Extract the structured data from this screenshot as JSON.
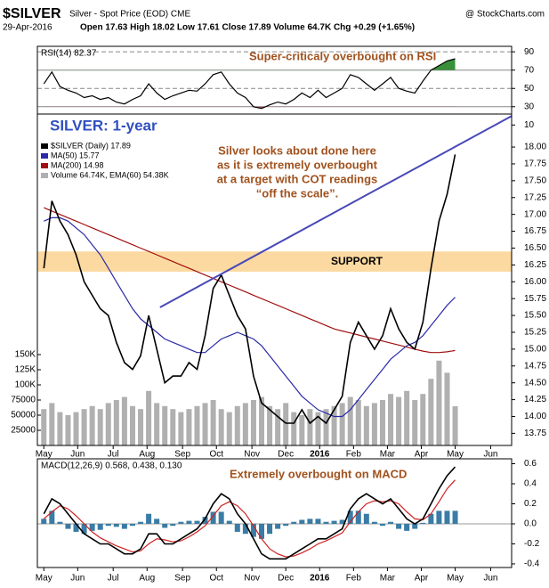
{
  "header": {
    "title": "$SILVER",
    "subtitle": "Silver - Spot Price (EOD) CME",
    "source": "@ StockCharts.com",
    "date": "29-Apr-2016",
    "quote": "Open 17.63 High 18.02 Low 17.61 Close 17.89 Volume 64.7K Chg +0.29 (+1.65%)"
  },
  "chart_data": [
    {
      "type": "line",
      "label": "RSI(14) 82.37",
      "annotation": "Super-criticaly overbought on RSI",
      "x": [
        0,
        5,
        10,
        15,
        20,
        25,
        30,
        35,
        40,
        45,
        50,
        55,
        60,
        65,
        70,
        75,
        80,
        85,
        90,
        95,
        100,
        105,
        110,
        115,
        120,
        125,
        130,
        135,
        140,
        145,
        150,
        155,
        160,
        165,
        170,
        175,
        180,
        185,
        190,
        195,
        200,
        205,
        210,
        215,
        220,
        225,
        230,
        235,
        240,
        245,
        250,
        255
      ],
      "xlim": [
        -4,
        290
      ],
      "ylim": [
        22,
        96
      ],
      "yticks": [
        90,
        70,
        50,
        30,
        10
      ],
      "overbought": 70,
      "oversold": 30,
      "overbought_color": "#3a8f3a",
      "oversold_color": "#b04040",
      "series": [
        {
          "color": "#000000",
          "values": [
            55,
            68,
            52,
            48,
            45,
            40,
            42,
            38,
            40,
            35,
            33,
            38,
            42,
            55,
            45,
            38,
            42,
            45,
            48,
            47,
            55,
            65,
            68,
            55,
            45,
            40,
            30,
            28,
            32,
            35,
            33,
            38,
            45,
            40,
            48,
            40,
            45,
            50,
            65,
            62,
            55,
            48,
            55,
            62,
            50,
            47,
            45,
            58,
            70,
            75,
            80,
            82.37
          ]
        }
      ]
    },
    {
      "type": "line",
      "title": "SILVER: 1-year",
      "annotations": [
        "Silver looks about done here",
        "as it is extremely overbought",
        "at a target with COT readings",
        "“off the scale”."
      ],
      "support_label": "SUPPORT",
      "support": [
        16.15,
        16.45
      ],
      "support_color": "#fbd9a0",
      "trendline": {
        "x": [
          72,
          290
        ],
        "y": [
          15.62,
          18.46
        ],
        "color": "#4848b8"
      },
      "x": [
        0,
        5,
        10,
        15,
        20,
        25,
        30,
        35,
        40,
        45,
        50,
        55,
        60,
        65,
        70,
        75,
        80,
        85,
        90,
        95,
        100,
        105,
        110,
        115,
        120,
        125,
        130,
        135,
        140,
        145,
        150,
        155,
        160,
        165,
        170,
        175,
        180,
        185,
        190,
        195,
        200,
        205,
        210,
        215,
        220,
        225,
        230,
        235,
        240,
        245,
        250,
        255
      ],
      "xlim": [
        -4,
        290
      ],
      "xticks": [
        {
          "value": 0,
          "label": "May"
        },
        {
          "value": 21,
          "label": "Jun"
        },
        {
          "value": 43,
          "label": "Jul"
        },
        {
          "value": 64,
          "label": "Aug"
        },
        {
          "value": 86,
          "label": "Sep"
        },
        {
          "value": 107,
          "label": "Oct"
        },
        {
          "value": 129,
          "label": "Nov"
        },
        {
          "value": 150,
          "label": "Dec"
        },
        {
          "value": 171,
          "label": "2016"
        },
        {
          "value": 192,
          "label": "Feb"
        },
        {
          "value": 213,
          "label": "Mar"
        },
        {
          "value": 234,
          "label": "Apr"
        },
        {
          "value": 255,
          "label": "May"
        },
        {
          "value": 277,
          "label": "Jun"
        }
      ],
      "ylim": [
        13.57,
        18.49
      ],
      "yticks": [
        {
          "value": 18,
          "label": "18.00"
        },
        {
          "value": 17.75,
          "label": "17.75"
        },
        {
          "value": 17.5,
          "label": "17.50"
        },
        {
          "value": 17.25,
          "label": "17.25"
        },
        {
          "value": 17,
          "label": "17.00"
        },
        {
          "value": 16.75,
          "label": "16.75"
        },
        {
          "value": 16.5,
          "label": "16.50"
        },
        {
          "value": 16.25,
          "label": "16.25"
        },
        {
          "value": 16,
          "label": "16.00"
        },
        {
          "value": 15.75,
          "label": "15.75"
        },
        {
          "value": 15.5,
          "label": "15.50"
        },
        {
          "value": 15.25,
          "label": "15.25"
        },
        {
          "value": 15,
          "label": "15.00"
        },
        {
          "value": 14.75,
          "label": "14.75"
        },
        {
          "value": 14.5,
          "label": "14.50"
        },
        {
          "value": 14.25,
          "label": "14.25"
        },
        {
          "value": 14,
          "label": "14.00"
        },
        {
          "value": 13.75,
          "label": "13.75"
        }
      ],
      "y2lim": [
        0,
        547000
      ],
      "y2ticks": [
        {
          "value": 150000,
          "label": "150K"
        },
        {
          "value": 125000,
          "label": "125K"
        },
        {
          "value": 100000,
          "label": "100K"
        },
        75000,
        50000,
        25000
      ],
      "series": [
        {
          "name": "Volume 64.74K, EMA(60) 54.38K",
          "type": "bar",
          "axis": "y2",
          "color": "#b0b0b0",
          "values": [
            60000,
            70000,
            55000,
            50000,
            55000,
            60000,
            65000,
            60000,
            70000,
            75000,
            80000,
            65000,
            60000,
            90000,
            70000,
            65000,
            60000,
            55000,
            60000,
            65000,
            70000,
            75000,
            60000,
            55000,
            65000,
            70000,
            75000,
            80000,
            65000,
            60000,
            70000,
            55000,
            50000,
            60000,
            55000,
            60000,
            65000,
            70000,
            80000,
            75000,
            65000,
            70000,
            75000,
            85000,
            80000,
            90000,
            75000,
            85000,
            110000,
            140000,
            120000,
            64740
          ]
        },
        {
          "name": "MA(200) 14.98",
          "color": "#a01010",
          "values": [
            17.1,
            17.05,
            17.0,
            16.95,
            16.9,
            16.85,
            16.8,
            16.75,
            16.7,
            16.65,
            16.6,
            16.55,
            16.5,
            16.45,
            16.4,
            16.35,
            16.3,
            16.25,
            16.2,
            16.15,
            16.1,
            16.05,
            16.0,
            15.95,
            15.9,
            15.85,
            15.8,
            15.75,
            15.7,
            15.65,
            15.6,
            15.55,
            15.5,
            15.45,
            15.4,
            15.35,
            15.3,
            15.27,
            15.24,
            15.21,
            15.18,
            15.15,
            15.12,
            15.09,
            15.06,
            15.03,
            15.0,
            14.97,
            14.95,
            14.95,
            14.96,
            14.98
          ]
        },
        {
          "name": "MA(50) 15.77",
          "color": "#2a2aa8",
          "values": [
            16.9,
            16.95,
            16.95,
            16.9,
            16.8,
            16.7,
            16.55,
            16.4,
            16.2,
            16.0,
            15.8,
            15.6,
            15.45,
            15.35,
            15.25,
            15.15,
            15.1,
            15.05,
            15.0,
            14.95,
            14.95,
            15.05,
            15.15,
            15.2,
            15.25,
            15.2,
            15.15,
            15.05,
            14.9,
            14.75,
            14.6,
            14.45,
            14.3,
            14.2,
            14.1,
            14.05,
            14.0,
            14.0,
            14.1,
            14.25,
            14.4,
            14.55,
            14.7,
            14.85,
            14.95,
            15.05,
            15.1,
            15.2,
            15.35,
            15.5,
            15.65,
            15.77
          ]
        },
        {
          "name": "$SILVER (Daily) 17.89",
          "color": "#000000",
          "values": [
            16.2,
            17.2,
            16.9,
            16.7,
            16.4,
            16.0,
            15.8,
            15.6,
            15.5,
            15.1,
            14.8,
            14.7,
            14.9,
            15.5,
            15.0,
            14.5,
            14.6,
            14.6,
            14.8,
            14.7,
            15.2,
            15.9,
            16.1,
            15.8,
            15.5,
            15.3,
            14.6,
            14.2,
            14.1,
            14.0,
            13.9,
            13.9,
            14.1,
            13.9,
            14.0,
            13.9,
            14.1,
            14.3,
            15.1,
            15.4,
            15.2,
            15.0,
            15.2,
            15.6,
            15.3,
            15.1,
            15.0,
            15.4,
            16.2,
            16.9,
            17.3,
            17.89
          ]
        }
      ]
    },
    {
      "type": "line",
      "label": "MACD(12,26,9) 0.568, 0.438, 0.130",
      "annotation": "Extremely overbought on MACD",
      "x": [
        0,
        5,
        10,
        15,
        20,
        25,
        30,
        35,
        40,
        45,
        50,
        55,
        60,
        65,
        70,
        75,
        80,
        85,
        90,
        95,
        100,
        105,
        110,
        115,
        120,
        125,
        130,
        135,
        140,
        145,
        150,
        155,
        160,
        165,
        170,
        175,
        180,
        185,
        190,
        195,
        200,
        205,
        210,
        215,
        220,
        225,
        230,
        235,
        240,
        245,
        250,
        255
      ],
      "xlim": [
        -4,
        290
      ],
      "xticks": [
        {
          "value": 0,
          "label": "May"
        },
        {
          "value": 21,
          "label": "Jun"
        },
        {
          "value": 43,
          "label": "Jul"
        },
        {
          "value": 64,
          "label": "Aug"
        },
        {
          "value": 86,
          "label": "Sep"
        },
        {
          "value": 107,
          "label": "Oct"
        },
        {
          "value": 129,
          "label": "Nov"
        },
        {
          "value": 150,
          "label": "Dec"
        },
        {
          "value": 171,
          "label": "2016"
        },
        {
          "value": 192,
          "label": "Feb"
        },
        {
          "value": 213,
          "label": "Mar"
        },
        {
          "value": 234,
          "label": "Apr"
        },
        {
          "value": 255,
          "label": "May"
        },
        {
          "value": 277,
          "label": "Jun"
        }
      ],
      "ylim": [
        -0.436,
        0.649
      ],
      "yticks": [
        0.6,
        0.4,
        0.2,
        {
          "value": 0,
          "label": "0.0"
        },
        -0.2,
        -0.4
      ],
      "series": [
        {
          "type": "bar",
          "color": "#3a7ca5",
          "values": [
            0.05,
            0.13,
            0.02,
            -0.05,
            -0.08,
            -0.1,
            -0.07,
            -0.06,
            -0.02,
            -0.03,
            -0.05,
            -0.02,
            0.02,
            0.1,
            0.05,
            -0.04,
            -0.02,
            0.02,
            0.03,
            0.03,
            0.07,
            0.12,
            0.12,
            0.03,
            -0.08,
            -0.1,
            -0.13,
            -0.15,
            -0.1,
            -0.05,
            -0.02,
            0.02,
            0.04,
            0.05,
            0.05,
            0.02,
            0.03,
            0.04,
            0.13,
            0.13,
            0.1,
            0.02,
            -0.02,
            0.02,
            -0.05,
            -0.07,
            -0.05,
            0.01,
            0.1,
            0.13,
            0.13,
            0.13
          ]
        },
        {
          "color": "#d02020",
          "values": [
            0.05,
            0.12,
            0.18,
            0.15,
            0.08,
            0.0,
            -0.08,
            -0.14,
            -0.18,
            -0.22,
            -0.25,
            -0.28,
            -0.27,
            -0.2,
            -0.15,
            -0.16,
            -0.18,
            -0.17,
            -0.13,
            -0.08,
            -0.02,
            0.08,
            0.18,
            0.22,
            0.18,
            0.1,
            -0.02,
            -0.15,
            -0.25,
            -0.3,
            -0.33,
            -0.32,
            -0.29,
            -0.25,
            -0.2,
            -0.17,
            -0.13,
            -0.09,
            0.02,
            0.12,
            0.2,
            0.23,
            0.22,
            0.23,
            0.2,
            0.12,
            0.05,
            0.04,
            0.1,
            0.22,
            0.35,
            0.438
          ]
        },
        {
          "color": "#000000",
          "values": [
            0.1,
            0.25,
            0.2,
            0.1,
            0.0,
            -0.1,
            -0.15,
            -0.2,
            -0.2,
            -0.25,
            -0.3,
            -0.3,
            -0.25,
            -0.1,
            -0.1,
            -0.2,
            -0.2,
            -0.15,
            -0.1,
            -0.05,
            0.05,
            0.2,
            0.3,
            0.25,
            0.1,
            0.0,
            -0.15,
            -0.3,
            -0.35,
            -0.35,
            -0.35,
            -0.3,
            -0.25,
            -0.2,
            -0.15,
            -0.15,
            -0.1,
            -0.05,
            0.15,
            0.25,
            0.3,
            0.25,
            0.2,
            0.25,
            0.15,
            0.05,
            0.0,
            0.05,
            0.2,
            0.35,
            0.48,
            0.568
          ]
        }
      ]
    }
  ]
}
